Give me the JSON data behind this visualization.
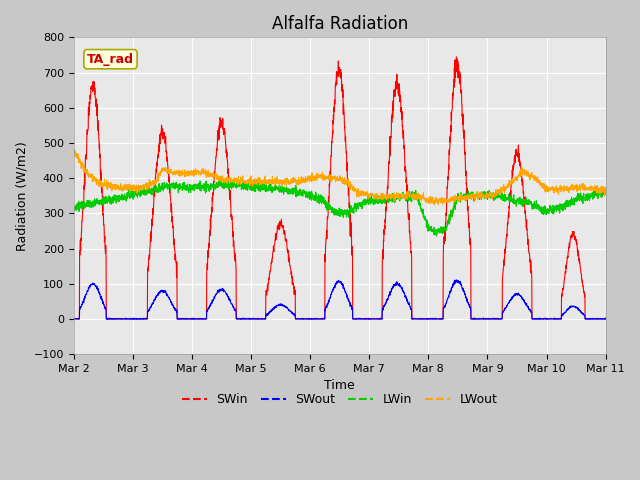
{
  "title": "Alfalfa Radiation",
  "xlabel": "Time",
  "ylabel": "Radiation (W/m2)",
  "ylim": [
    -100,
    800
  ],
  "yticks": [
    -100,
    0,
    100,
    200,
    300,
    400,
    500,
    600,
    700,
    800
  ],
  "x_tick_days": [
    2,
    3,
    4,
    5,
    6,
    7,
    8,
    9,
    10,
    11
  ],
  "colors": {
    "SWin": "#ff0000",
    "SWout": "#0000ff",
    "LWin": "#00cc00",
    "LWout": "#ffa500"
  },
  "annotation_text": "TA_rad",
  "annotation_color": "#cc0000",
  "annotation_bg": "#ffffdd",
  "annotation_border": "#aaaa00",
  "fig_bg": "#c8c8c8",
  "plot_bg": "#e8e8e8",
  "grid_color": "#ffffff",
  "title_fontsize": 12,
  "label_fontsize": 9,
  "tick_fontsize": 8,
  "legend_fontsize": 9
}
